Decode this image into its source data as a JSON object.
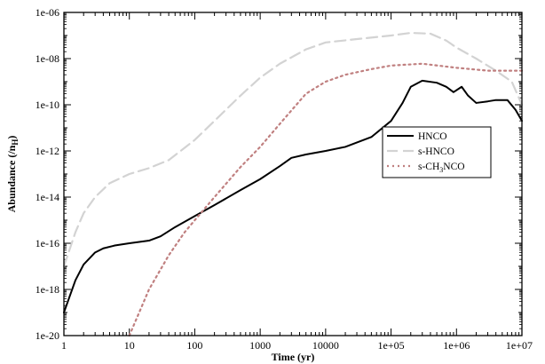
{
  "chart_data": {
    "type": "line",
    "xlabel": "Time (yr)",
    "ylabel": "Abundance (/n",
    "ylabel_sub": "H",
    "ylabel_close": ")",
    "xscale": "log",
    "yscale": "log",
    "xlim": [
      1,
      10000000
    ],
    "ylim": [
      1e-20,
      1e-06
    ],
    "grid": false,
    "legend_position": "right-center",
    "x_ticks": [
      1,
      10,
      100,
      1000,
      10000,
      100000,
      1000000,
      10000000
    ],
    "x_tick_labels": [
      "1",
      "10",
      "100",
      "1000",
      "10000",
      "1e+05",
      "1e+06",
      "1e+07"
    ],
    "y_ticks": [
      1e-20,
      1e-18,
      1e-16,
      1e-14,
      1e-12,
      1e-10,
      1e-08,
      1e-06
    ],
    "y_tick_labels": [
      "1e-20",
      "1e-18",
      "1e-16",
      "1e-14",
      "1e-12",
      "1e-10",
      "1e-08",
      "1e-06"
    ],
    "series": [
      {
        "name": "HNCO",
        "label_parts": [
          "HNCO"
        ],
        "color": "#000000",
        "style": "solid",
        "points": [
          [
            1,
            1e-19
          ],
          [
            1.5,
            2.5e-18
          ],
          [
            2,
            1.2e-17
          ],
          [
            3,
            4e-17
          ],
          [
            4,
            6e-17
          ],
          [
            6,
            8e-17
          ],
          [
            10,
            1e-16
          ],
          [
            20,
            1.3e-16
          ],
          [
            30,
            2e-16
          ],
          [
            50,
            5e-16
          ],
          [
            100,
            1.5e-15
          ],
          [
            200,
            4.5e-15
          ],
          [
            500,
            2e-14
          ],
          [
            1000,
            6e-14
          ],
          [
            2000,
            2.2e-13
          ],
          [
            3000,
            5e-13
          ],
          [
            5000,
            7e-13
          ],
          [
            10000,
            1e-12
          ],
          [
            20000,
            1.5e-12
          ],
          [
            50000,
            4e-12
          ],
          [
            100000,
            2e-11
          ],
          [
            150000,
            1.2e-10
          ],
          [
            200000,
            6e-10
          ],
          [
            300000,
            1.1e-09
          ],
          [
            500000,
            9e-10
          ],
          [
            700000,
            6e-10
          ],
          [
            900000,
            3.5e-10
          ],
          [
            1200000,
            6e-10
          ],
          [
            1500000,
            2.5e-10
          ],
          [
            2000000,
            1.2e-10
          ],
          [
            3000000,
            1.4e-10
          ],
          [
            4000000,
            1.6e-10
          ],
          [
            6000000,
            1.6e-10
          ],
          [
            8000000,
            6e-11
          ],
          [
            10000000,
            2e-11
          ]
        ]
      },
      {
        "name": "s-HNCO",
        "label_parts": [
          "s-HNCO"
        ],
        "color": "#d3d3d3",
        "style": "dashed",
        "points": [
          [
            1,
            1e-17
          ],
          [
            1.5,
            3e-16
          ],
          [
            2,
            2e-15
          ],
          [
            3,
            1e-14
          ],
          [
            5,
            4e-14
          ],
          [
            10,
            1e-13
          ],
          [
            20,
            1.8e-13
          ],
          [
            40,
            4e-13
          ],
          [
            100,
            3e-12
          ],
          [
            200,
            2e-11
          ],
          [
            500,
            2.5e-10
          ],
          [
            1000,
            1.5e-09
          ],
          [
            2000,
            6e-09
          ],
          [
            5000,
            2.5e-08
          ],
          [
            10000,
            5e-08
          ],
          [
            30000,
            7e-08
          ],
          [
            100000,
            1e-07
          ],
          [
            200000,
            1.3e-07
          ],
          [
            400000,
            1.2e-07
          ],
          [
            700000,
            6e-08
          ],
          [
            1000000,
            3e-08
          ],
          [
            2000000,
            1e-08
          ],
          [
            4000000,
            3e-09
          ],
          [
            7000000,
            1e-09
          ],
          [
            10000000,
            1e-10
          ]
        ]
      },
      {
        "name": "s-CH3NCO",
        "label_parts": [
          "s-CH",
          "3",
          "NCO"
        ],
        "color": "#c08080",
        "style": "dotted",
        "points": [
          [
            10,
            1e-20
          ],
          [
            20,
            1e-18
          ],
          [
            40,
            3e-17
          ],
          [
            70,
            3e-16
          ],
          [
            100,
            1e-15
          ],
          [
            200,
            1e-14
          ],
          [
            500,
            2e-13
          ],
          [
            1000,
            1.5e-12
          ],
          [
            2000,
            1.5e-11
          ],
          [
            5000,
            3e-10
          ],
          [
            10000,
            1e-09
          ],
          [
            20000,
            2e-09
          ],
          [
            50000,
            3.5e-09
          ],
          [
            100000,
            5e-09
          ],
          [
            300000,
            6e-09
          ],
          [
            1000000,
            4e-09
          ],
          [
            3000000,
            3e-09
          ],
          [
            10000000,
            3e-09
          ]
        ]
      }
    ]
  }
}
